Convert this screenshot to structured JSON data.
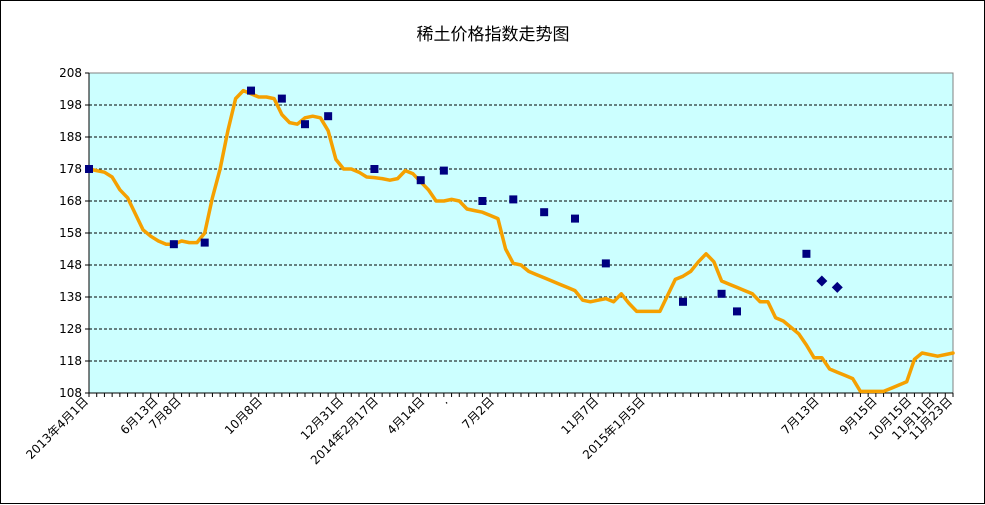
{
  "chart_data": {
    "type": "line",
    "title": "稀土价格指数走势图",
    "xlabel": "",
    "ylabel": "",
    "ylim": [
      108,
      208
    ],
    "y_ticks": [
      108,
      118,
      128,
      138,
      148,
      158,
      168,
      178,
      188,
      198,
      208
    ],
    "x_tick_labels": [
      "2013年4月1日",
      "6月13日",
      "7月8日",
      "10月8日",
      "12月31日",
      "2014年2月17日",
      "4月14日",
      ".",
      "7月2日",
      "11月7日",
      "2015年1月5日",
      "7月13日",
      "9月15日",
      "10月15日",
      "11月11日",
      "11月23日"
    ],
    "series": [
      {
        "values": [
          178,
          177.5,
          177,
          175.5,
          171.5,
          169,
          164,
          159,
          157,
          155.5,
          154.5,
          154.5,
          155.5,
          155,
          155,
          158,
          169,
          178,
          190,
          200,
          202.5,
          201.5,
          200.5,
          200.5,
          200,
          195,
          192.5,
          192,
          194,
          194.5,
          194,
          190,
          181,
          178,
          178,
          177,
          175.5,
          175.3,
          175,
          174.5,
          175,
          177.5,
          176.5,
          174,
          171.5,
          168,
          168,
          168.5,
          168,
          165.5,
          165,
          164.5,
          163.5,
          162.5,
          153,
          148.5,
          148,
          146,
          145,
          144,
          143,
          142,
          141,
          140,
          137,
          136.5,
          137,
          137.5,
          136.5,
          139,
          136,
          133.5,
          133.5,
          133.5,
          133.5,
          138.5,
          143.5,
          144.5,
          146,
          149,
          151.5,
          149,
          143,
          142,
          141,
          140,
          139,
          136.5,
          136.5,
          131.5,
          130.5,
          128.5,
          126.5,
          123,
          119,
          119,
          115.5,
          114.5,
          113.5,
          112.5,
          108.5,
          108.5,
          108.5,
          108.5,
          109.5,
          110.5,
          111.5,
          118.5,
          120.5,
          120,
          119.5,
          120,
          120.5
        ]
      }
    ],
    "markers": [
      {
        "index": 0,
        "value": 178,
        "shape": "square"
      },
      {
        "index": 11,
        "value": 154.5,
        "shape": "square"
      },
      {
        "index": 15,
        "value": 155,
        "shape": "square"
      },
      {
        "index": 21,
        "value": 202.5,
        "shape": "square"
      },
      {
        "index": 25,
        "value": 200,
        "shape": "square"
      },
      {
        "index": 28,
        "value": 192,
        "shape": "square"
      },
      {
        "index": 31,
        "value": 194.5,
        "shape": "square"
      },
      {
        "index": 37,
        "value": 178,
        "shape": "square"
      },
      {
        "index": 43,
        "value": 174.5,
        "shape": "square"
      },
      {
        "index": 46,
        "value": 177.5,
        "shape": "square"
      },
      {
        "index": 51,
        "value": 168,
        "shape": "square"
      },
      {
        "index": 55,
        "value": 168.5,
        "shape": "square"
      },
      {
        "index": 59,
        "value": 164.5,
        "shape": "square"
      },
      {
        "index": 63,
        "value": 162.5,
        "shape": "square"
      },
      {
        "index": 67,
        "value": 148.5,
        "shape": "square"
      },
      {
        "index": 77,
        "value": 136.5,
        "shape": "square"
      },
      {
        "index": 82,
        "value": 139,
        "shape": "square"
      },
      {
        "index": 84,
        "value": 133.5,
        "shape": "square"
      },
      {
        "index": 93,
        "value": 151.5,
        "shape": "square"
      },
      {
        "index": 95,
        "value": 143,
        "shape": "diamond"
      },
      {
        "index": 97,
        "value": 141,
        "shape": "diamond"
      }
    ],
    "grid": true,
    "legend": "none",
    "colors": {
      "line": "#F5A000",
      "marker": "#000080",
      "plot_background": "#CCFFFF",
      "gridline": "#000000"
    }
  }
}
